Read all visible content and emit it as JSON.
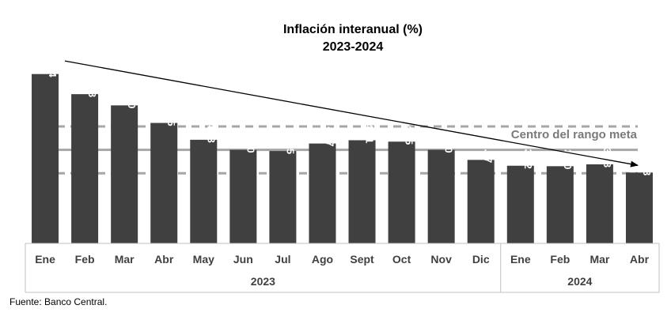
{
  "chart_data": {
    "type": "bar",
    "title": "Inflación interanual (%)",
    "subtitle": "2023-2024",
    "categories": [
      "Ene",
      "Feb",
      "Mar",
      "Abr",
      "May",
      "Jun",
      "Jul",
      "Ago",
      "Sept",
      "Oct",
      "Nov",
      "Dic",
      "Ene",
      "Feb",
      "Mar",
      "Abr"
    ],
    "values": [
      7.24,
      6.38,
      5.9,
      5.15,
      4.43,
      4.0,
      3.95,
      4.27,
      4.41,
      4.35,
      4.0,
      3.57,
      3.32,
      3.3,
      3.38,
      3.03
    ],
    "value_labels": [
      "7.24",
      "6.38",
      "5.90",
      "5.15",
      "4.43",
      "4.00",
      "3.95",
      "4.27",
      "4.41",
      "4.35",
      "4.00",
      "3.57",
      "3.32",
      "3.30",
      "3.38",
      "3.03"
    ],
    "year_groups": [
      {
        "label": "2023",
        "count": 12
      },
      {
        "label": "2024",
        "count": 4
      }
    ],
    "target_center": 4.0,
    "target_lower": 3.0,
    "target_upper": 5.0,
    "target_label": "Centro del rango meta",
    "trend_arrow": {
      "from_value": 7.8,
      "to_value": 3.0
    },
    "ylim": [
      0,
      7.5
    ],
    "bar_color": "#404040",
    "target_line_color": "#a6a6a6",
    "source": "Fuente: Banco Central."
  }
}
